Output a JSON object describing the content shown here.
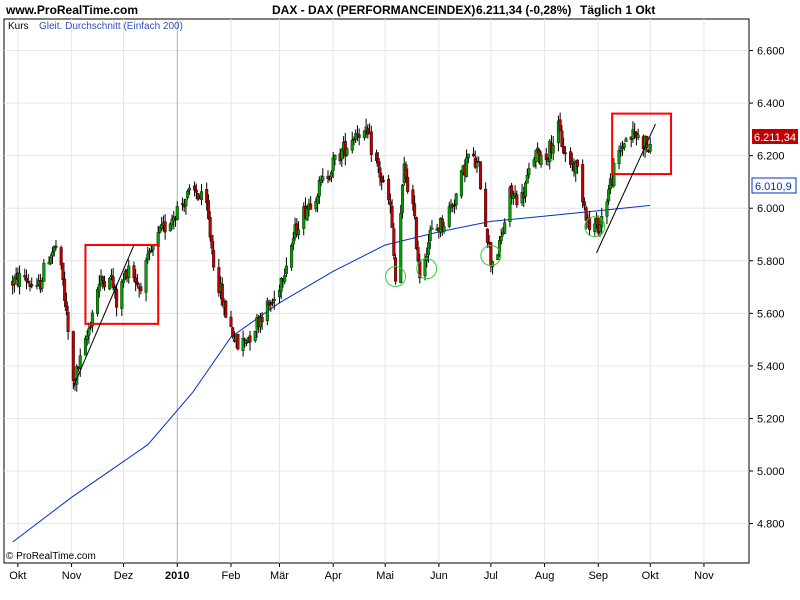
{
  "header": {
    "site": "www.ProRealTime.com",
    "title": "DAX - DAX (PERFORMANCEINDEX)",
    "price": "6.211,34 (-0,28%)",
    "period": "Täglich  1 Okt"
  },
  "legend": {
    "series_label": "Kurs",
    "ma_label": "Gleit. Durchschnitt (Einfach 200)"
  },
  "watermark": "© ProRealTime.com",
  "tags": {
    "price": "6.211,34",
    "ma": "6.010,9"
  },
  "colors": {
    "up": "#00a000",
    "down": "#c00000",
    "ma": "#0030c8",
    "box": "#ff0000",
    "circle": "#33cc33",
    "grid": "#e6e6e6"
  },
  "chart_data": {
    "type": "candlestick",
    "title": "DAX - DAX (PERFORMANCEINDEX)",
    "ylim": [
      4650,
      6720
    ],
    "y_ticks": [
      4800,
      5000,
      5200,
      5400,
      5600,
      5800,
      6000,
      6200,
      6400,
      6600
    ],
    "y_tick_labels": [
      "4.800",
      "5.000",
      "5.200",
      "5.400",
      "5.600",
      "5.800",
      "6.000",
      "6.200",
      "6.400",
      "6.600"
    ],
    "x_tick_labels": [
      "Okt",
      "Nov",
      "Dez",
      "2010",
      "Feb",
      "Mär",
      "Apr",
      "Mai",
      "Jun",
      "Jul",
      "Aug",
      "Sep",
      "Okt",
      "Nov"
    ],
    "close_path": [
      [
        "2009-09-28",
        5720
      ],
      [
        "2009-10-05",
        5740
      ],
      [
        "2009-10-12",
        5680
      ],
      [
        "2009-10-19",
        5820
      ],
      [
        "2009-10-23",
        5850
      ],
      [
        "2009-10-27",
        5720
      ],
      [
        "2009-11-02",
        5330
      ],
      [
        "2009-11-09",
        5480
      ],
      [
        "2009-11-16",
        5700
      ],
      [
        "2009-11-23",
        5760
      ],
      [
        "2009-11-27",
        5640
      ],
      [
        "2009-12-04",
        5790
      ],
      [
        "2009-12-10",
        5700
      ],
      [
        "2009-12-16",
        5810
      ],
      [
        "2009-12-22",
        5900
      ],
      [
        "2009-12-30",
        5980
      ],
      [
        "2010-01-06",
        6040
      ],
      [
        "2010-01-12",
        6060
      ],
      [
        "2010-01-18",
        6000
      ],
      [
        "2010-01-22",
        5800
      ],
      [
        "2010-01-28",
        5620
      ],
      [
        "2010-02-05",
        5470
      ],
      [
        "2010-02-12",
        5520
      ],
      [
        "2010-02-19",
        5600
      ],
      [
        "2010-02-26",
        5650
      ],
      [
        "2010-03-05",
        5800
      ],
      [
        "2010-03-12",
        5950
      ],
      [
        "2010-03-19",
        6030
      ],
      [
        "2010-03-26",
        6100
      ],
      [
        "2010-04-02",
        6180
      ],
      [
        "2010-04-09",
        6240
      ],
      [
        "2010-04-15",
        6300
      ],
      [
        "2010-04-21",
        6270
      ],
      [
        "2010-04-27",
        6150
      ],
      [
        "2010-05-04",
        6000
      ],
      [
        "2010-05-07",
        5720
      ],
      [
        "2010-05-12",
        6150
      ],
      [
        "2010-05-17",
        6000
      ],
      [
        "2010-05-21",
        5750
      ],
      [
        "2010-05-27",
        5900
      ],
      [
        "2010-06-04",
        5950
      ],
      [
        "2010-06-11",
        6050
      ],
      [
        "2010-06-18",
        6200
      ],
      [
        "2010-06-24",
        6150
      ],
      [
        "2010-07-01",
        5800
      ],
      [
        "2010-07-06",
        5850
      ],
      [
        "2010-07-12",
        6050
      ],
      [
        "2010-07-19",
        6040
      ],
      [
        "2010-07-26",
        6200
      ],
      [
        "2010-08-02",
        6200
      ],
      [
        "2010-08-09",
        6300
      ],
      [
        "2010-08-13",
        6200
      ],
      [
        "2010-08-20",
        6150
      ],
      [
        "2010-08-27",
        5920
      ],
      [
        "2010-09-02",
        5940
      ],
      [
        "2010-09-09",
        6120
      ],
      [
        "2010-09-16",
        6260
      ],
      [
        "2010-09-22",
        6280
      ],
      [
        "2010-09-28",
        6250
      ],
      [
        "2010-10-01",
        6211.34
      ]
    ],
    "moving_average": {
      "name": "Gleit. Durchschnitt (Einfach 200)",
      "points": [
        [
          "2009-09-28",
          4730
        ],
        [
          "2009-11-01",
          4900
        ],
        [
          "2009-12-15",
          5100
        ],
        [
          "2010-01-10",
          5300
        ],
        [
          "2010-02-01",
          5510
        ],
        [
          "2010-03-01",
          5640
        ],
        [
          "2010-04-01",
          5760
        ],
        [
          "2010-05-01",
          5860
        ],
        [
          "2010-06-01",
          5910
        ],
        [
          "2010-07-01",
          5950
        ],
        [
          "2010-08-01",
          5970
        ],
        [
          "2010-09-01",
          5990
        ],
        [
          "2010-10-01",
          6010.9
        ]
      ]
    },
    "annotations": {
      "boxes": [
        {
          "from": "2009-11-09",
          "to": "2009-12-21",
          "low": 5560,
          "high": 5860
        },
        {
          "from": "2010-09-09",
          "to": "2010-10-13",
          "low": 6130,
          "high": 6360
        }
      ],
      "circles": [
        {
          "date": "2010-05-07",
          "value": 5740
        },
        {
          "date": "2010-05-25",
          "value": 5770
        },
        {
          "date": "2010-07-01",
          "value": 5820
        },
        {
          "date": "2010-08-30",
          "value": 5930
        }
      ],
      "trendlines": [
        {
          "from": [
            "2009-11-02",
            5320
          ],
          "to": [
            "2009-12-07",
            5860
          ]
        },
        {
          "from": [
            "2010-08-31",
            5830
          ],
          "to": [
            "2010-10-04",
            6320
          ]
        }
      ]
    }
  }
}
